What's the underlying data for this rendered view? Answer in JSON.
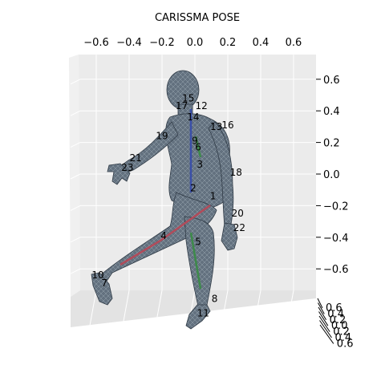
{
  "chart_data": {
    "type": "scatter",
    "projection": "3d",
    "title": "CARISSMA POSE",
    "xlabel": "",
    "ylabel": "",
    "zlabel": "",
    "x_ticks": [
      "−0.6",
      "−0.4",
      "−0.2",
      "0.0",
      "0.2",
      "0.4",
      "0.6"
    ],
    "z_ticks": [
      "0.6",
      "0.4",
      "0.2",
      "0.0",
      "−0.2",
      "−0.4",
      "−0.6"
    ],
    "y_ticks": [
      "0.6",
      "0.4",
      "0.2",
      "0.0",
      "0.2",
      "0.4",
      "0.6"
    ],
    "grid": true,
    "joints": [
      {
        "label": "15",
        "x": -0.04,
        "z": 0.46
      },
      {
        "label": "17",
        "x": -0.08,
        "z": 0.41
      },
      {
        "label": "12",
        "x": 0.04,
        "z": 0.41
      },
      {
        "label": "14",
        "x": -0.01,
        "z": 0.34
      },
      {
        "label": "13",
        "x": 0.13,
        "z": 0.28
      },
      {
        "label": "16",
        "x": 0.2,
        "z": 0.29
      },
      {
        "label": "19",
        "x": -0.2,
        "z": 0.22
      },
      {
        "label": "9",
        "x": 0.0,
        "z": 0.19
      },
      {
        "label": "6",
        "x": 0.02,
        "z": 0.15
      },
      {
        "label": "21",
        "x": -0.36,
        "z": 0.08
      },
      {
        "label": "23",
        "x": -0.41,
        "z": 0.02
      },
      {
        "label": "3",
        "x": 0.03,
        "z": 0.04
      },
      {
        "label": "18",
        "x": 0.25,
        "z": -0.01
      },
      {
        "label": "2",
        "x": -0.01,
        "z": -0.11
      },
      {
        "label": "1",
        "x": 0.11,
        "z": -0.16
      },
      {
        "label": "20",
        "x": 0.26,
        "z": -0.27
      },
      {
        "label": "22",
        "x": 0.27,
        "z": -0.36
      },
      {
        "label": "4",
        "x": -0.19,
        "z": -0.41
      },
      {
        "label": "5",
        "x": 0.02,
        "z": -0.45
      },
      {
        "label": "10",
        "x": -0.59,
        "z": -0.66
      },
      {
        "label": "7",
        "x": -0.55,
        "z": -0.71
      },
      {
        "label": "8",
        "x": 0.12,
        "z": -0.81
      },
      {
        "label": "11",
        "x": 0.05,
        "z": -0.9
      }
    ]
  }
}
